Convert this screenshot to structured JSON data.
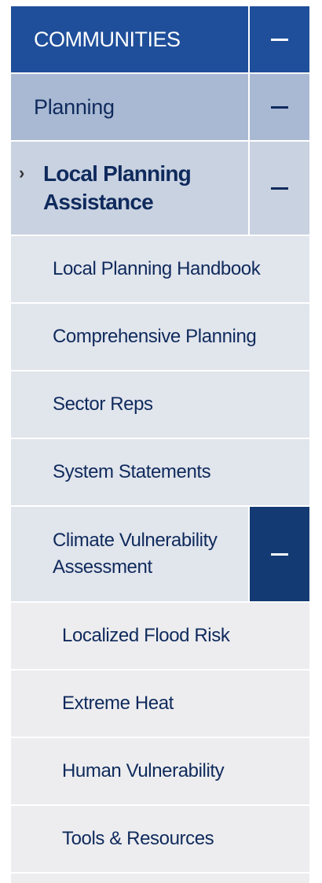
{
  "nav": {
    "communities": {
      "label": "COMMUNITIES"
    },
    "planning": {
      "label": "Planning"
    },
    "local_planning": {
      "label_line1": "Local Planning",
      "label_line2": "Assistance",
      "chevron": "›"
    },
    "subitems": [
      {
        "label": "Local Planning Handbook"
      },
      {
        "label": "Comprehensive Planning"
      },
      {
        "label": "Sector Reps"
      },
      {
        "label": "System Statements"
      }
    ],
    "climate": {
      "label_line1": "Climate Vulnerability",
      "label_line2": "Assessment"
    },
    "leaves": [
      {
        "label": "Localized Flood Risk"
      },
      {
        "label": "Extreme Heat"
      },
      {
        "label": "Human Vulnerability"
      },
      {
        "label": "Tools & Resources"
      }
    ]
  },
  "colors": {
    "level1_bg": "#1f4f9a",
    "level2_bg": "#a9b9d3",
    "level3_bg": "#c9d2e1",
    "level4_bg": "#e1e5ec",
    "level5_bg": "#ededef",
    "active_toggle_bg": "#133a72",
    "text": "#0f2a5c"
  },
  "icons": {
    "collapse": "minus-icon",
    "current": "chevron-right-icon"
  }
}
